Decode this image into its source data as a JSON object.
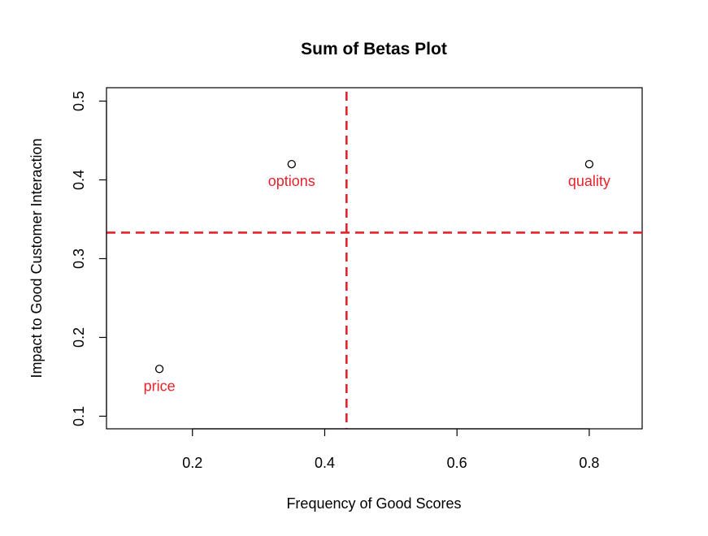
{
  "chart_data": {
    "type": "scatter",
    "title": "Sum of Betas Plot",
    "xlabel": "Frequency of Good Scores",
    "ylabel": "Impact to Good Customer Interaction",
    "xlim": [
      0.07,
      0.88
    ],
    "ylim": [
      0.084,
      0.517
    ],
    "x_ticks": [
      0.2,
      0.4,
      0.6,
      0.8
    ],
    "x_tick_labels": [
      "0.2",
      "0.4",
      "0.6",
      "0.8"
    ],
    "y_ticks": [
      0.1,
      0.2,
      0.3,
      0.4,
      0.5
    ],
    "y_tick_labels": [
      "0.1",
      "0.2",
      "0.3",
      "0.4",
      "0.5"
    ],
    "grid": false,
    "points": [
      {
        "label": "price",
        "x": 0.15,
        "y": 0.16
      },
      {
        "label": "options",
        "x": 0.35,
        "y": 0.42
      },
      {
        "label": "quality",
        "x": 0.8,
        "y": 0.42
      }
    ],
    "reference_lines": {
      "vertical_x": 0.433,
      "horizontal_y": 0.333,
      "style": "dashed",
      "color": "#e8222a"
    },
    "label_color": "#e8222a",
    "point_marker": "open-circle"
  }
}
